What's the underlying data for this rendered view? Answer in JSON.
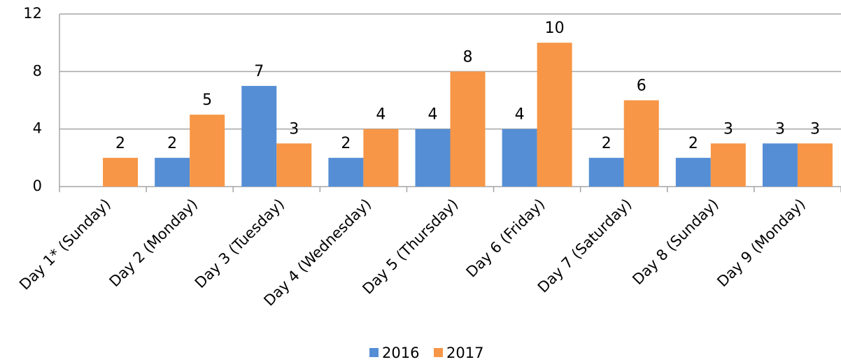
{
  "chart_data": {
    "type": "bar",
    "categories": [
      "Day 1* (Sunday)",
      "Day 2 (Monday)",
      "Day 3 (Tuesday)",
      "Day 4 (Wednesday)",
      "Day 5 (Thursday)",
      "Day 6 (Friday)",
      "Day 7 (Saturday)",
      "Day 8 (Sunday)",
      "Day 9 (Monday)"
    ],
    "series": [
      {
        "name": "2016",
        "color": "#558ed5",
        "values": [
          null,
          2,
          7,
          2,
          4,
          4,
          2,
          2,
          3
        ]
      },
      {
        "name": "2017",
        "color": "#f79646",
        "values": [
          2,
          5,
          3,
          4,
          8,
          10,
          6,
          3,
          3
        ]
      }
    ],
    "ylim": [
      0,
      12
    ],
    "yticks": [
      0,
      4,
      8,
      12
    ],
    "grid": true,
    "legend": "bottom"
  }
}
